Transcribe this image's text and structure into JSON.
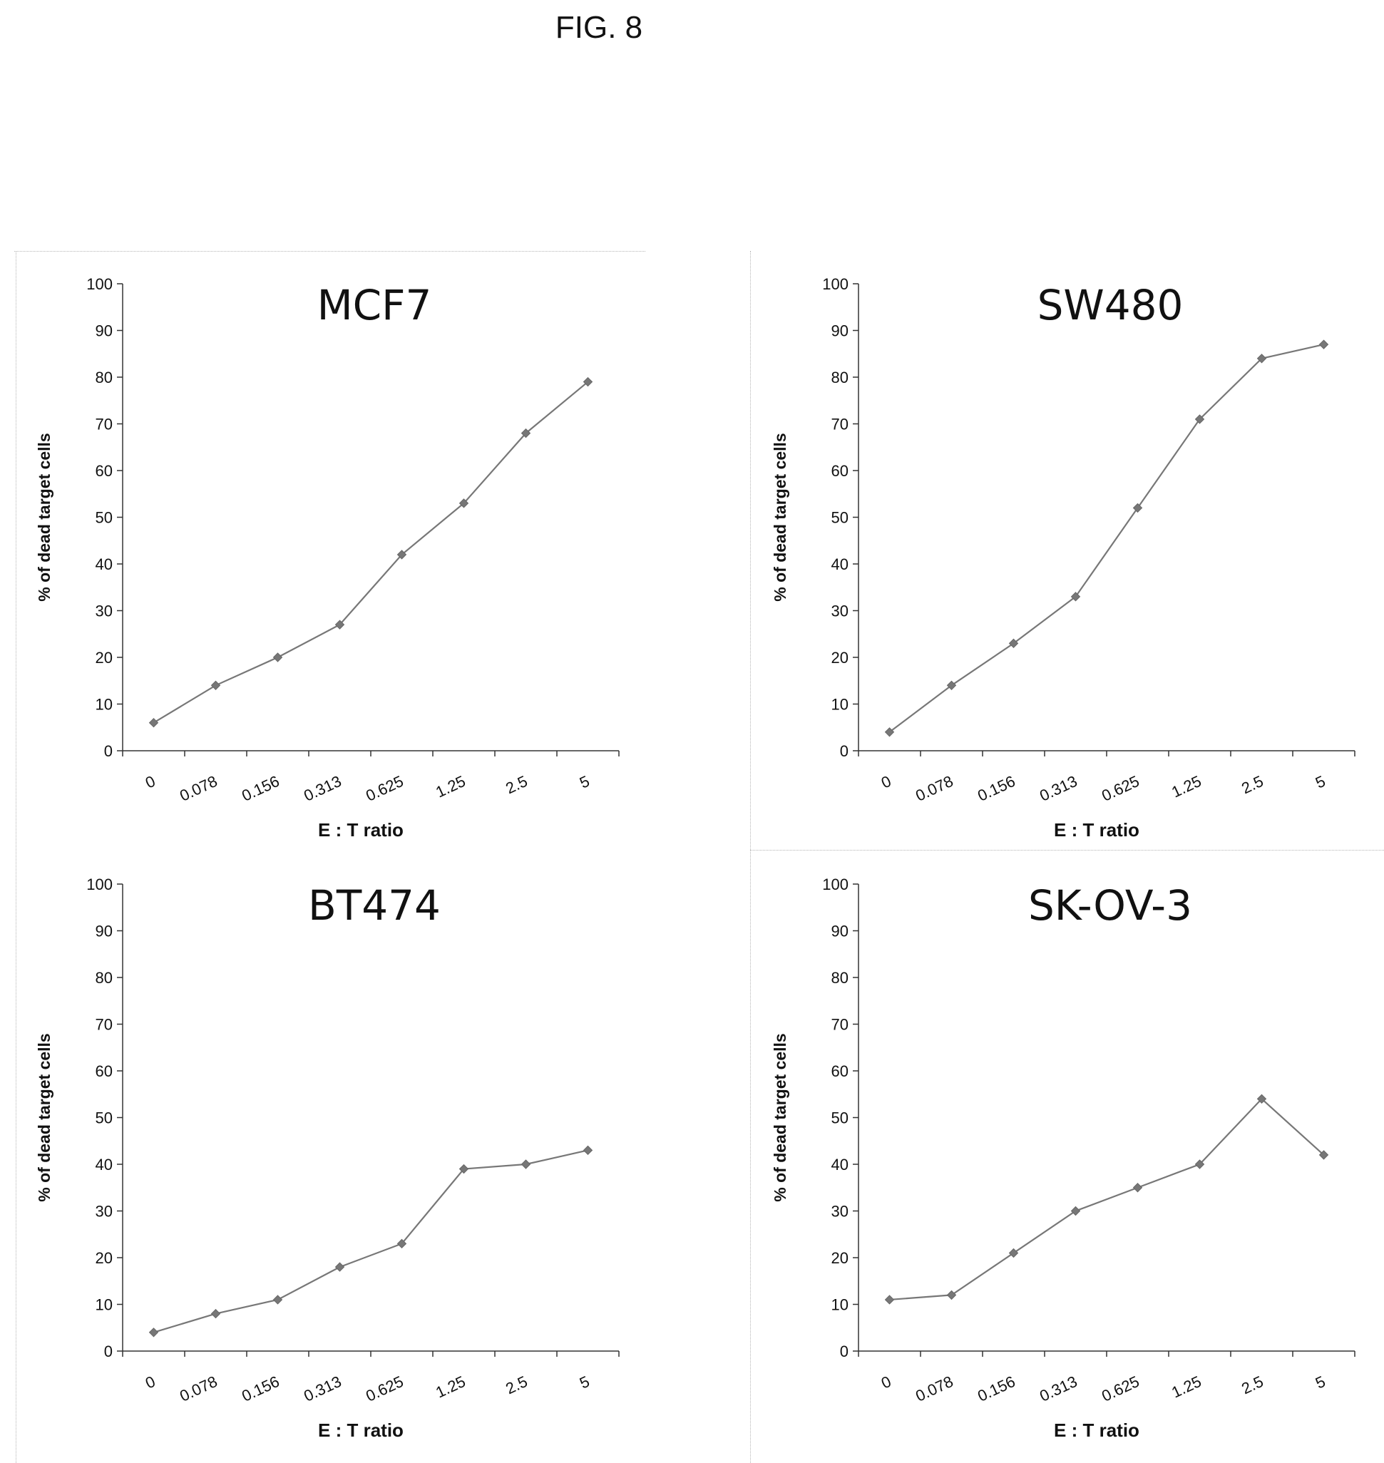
{
  "figure_label": "FIG. 8",
  "chart_data": [
    {
      "type": "line",
      "title": "MCF7",
      "xlabel": "E : T ratio",
      "ylabel": "% of dead target cells",
      "categories": [
        "0",
        "0.078",
        "0.156",
        "0.313",
        "0.625",
        "1.25",
        "2.5",
        "5"
      ],
      "values": [
        6,
        14,
        20,
        27,
        42,
        53,
        68,
        79
      ],
      "ylim": [
        0,
        100
      ],
      "yticks": [
        0,
        10,
        20,
        30,
        40,
        50,
        60,
        70,
        80,
        90,
        100
      ],
      "grid": false,
      "line_color": "#777777"
    },
    {
      "type": "line",
      "title": "SW480",
      "xlabel": "E : T ratio",
      "ylabel": "% of dead target cells",
      "categories": [
        "0",
        "0.078",
        "0.156",
        "0.313",
        "0.625",
        "1.25",
        "2.5",
        "5"
      ],
      "values": [
        4,
        14,
        23,
        33,
        52,
        71,
        84,
        87
      ],
      "ylim": [
        0,
        100
      ],
      "yticks": [
        0,
        10,
        20,
        30,
        40,
        50,
        60,
        70,
        80,
        90,
        100
      ],
      "grid": false,
      "line_color": "#777777"
    },
    {
      "type": "line",
      "title": "BT474",
      "xlabel": "E : T ratio",
      "ylabel": "% of dead target cells",
      "categories": [
        "0",
        "0.078",
        "0.156",
        "0.313",
        "0.625",
        "1.25",
        "2.5",
        "5"
      ],
      "values": [
        4,
        8,
        11,
        18,
        23,
        39,
        40,
        43
      ],
      "ylim": [
        0,
        100
      ],
      "yticks": [
        0,
        10,
        20,
        30,
        40,
        50,
        60,
        70,
        80,
        90,
        100
      ],
      "grid": false,
      "line_color": "#777777"
    },
    {
      "type": "line",
      "title": "SK-OV-3",
      "xlabel": "E : T ratio",
      "ylabel": "% of dead target cells",
      "categories": [
        "0",
        "0.078",
        "0.156",
        "0.313",
        "0.625",
        "1.25",
        "2.5",
        "5"
      ],
      "values": [
        11,
        12,
        21,
        30,
        35,
        40,
        54,
        42
      ],
      "ylim": [
        0,
        100
      ],
      "yticks": [
        0,
        10,
        20,
        30,
        40,
        50,
        60,
        70,
        80,
        90,
        100
      ],
      "grid": false,
      "line_color": "#777777"
    }
  ]
}
